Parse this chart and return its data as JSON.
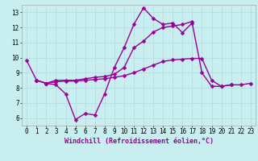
{
  "background_color": "#c8eef0",
  "grid_color": "#b8dde0",
  "line_color": "#990099",
  "marker": "D",
  "marker_size": 2.5,
  "line_width": 1.0,
  "xlim": [
    -0.5,
    23.5
  ],
  "ylim": [
    5.5,
    13.5
  ],
  "yticks": [
    6,
    7,
    8,
    9,
    10,
    11,
    12,
    13
  ],
  "xticks": [
    0,
    1,
    2,
    3,
    4,
    5,
    6,
    7,
    8,
    9,
    10,
    11,
    12,
    13,
    14,
    15,
    16,
    17,
    18,
    19,
    20,
    21,
    22,
    23
  ],
  "xlabel": "Windchill (Refroidissement éolien,°C)",
  "xlabel_fontsize": 6.0,
  "tick_fontsize": 5.5,
  "series1_x": [
    0,
    1,
    2,
    3,
    4,
    5,
    6,
    7,
    8,
    9,
    10,
    11,
    12,
    13,
    14,
    15,
    16,
    17,
    18,
    19,
    20,
    21
  ],
  "series1_y": [
    9.8,
    8.5,
    8.3,
    8.2,
    7.6,
    5.9,
    6.3,
    6.2,
    7.6,
    9.35,
    10.65,
    12.2,
    13.3,
    12.6,
    12.2,
    12.3,
    11.65,
    12.3,
    9.0,
    8.1,
    8.1,
    8.2
  ],
  "series2_x": [
    1,
    2,
    3,
    4,
    5,
    6,
    7,
    8,
    9,
    10,
    11,
    12,
    13,
    14,
    15,
    16,
    17
  ],
  "series2_y": [
    8.5,
    8.3,
    8.5,
    8.5,
    8.5,
    8.6,
    8.7,
    8.75,
    8.9,
    9.35,
    10.65,
    11.1,
    11.7,
    12.0,
    12.1,
    12.2,
    12.4
  ],
  "series3_x": [
    1,
    2,
    3,
    4,
    5,
    6,
    7,
    8,
    9,
    10,
    11,
    12,
    13,
    14,
    15,
    16,
    17,
    18,
    19,
    20,
    21,
    22,
    23
  ],
  "series3_y": [
    8.5,
    8.3,
    8.4,
    8.45,
    8.45,
    8.5,
    8.55,
    8.6,
    8.7,
    8.8,
    9.0,
    9.25,
    9.5,
    9.75,
    9.85,
    9.9,
    9.95,
    9.95,
    8.5,
    8.1,
    8.2,
    8.2,
    8.3
  ]
}
